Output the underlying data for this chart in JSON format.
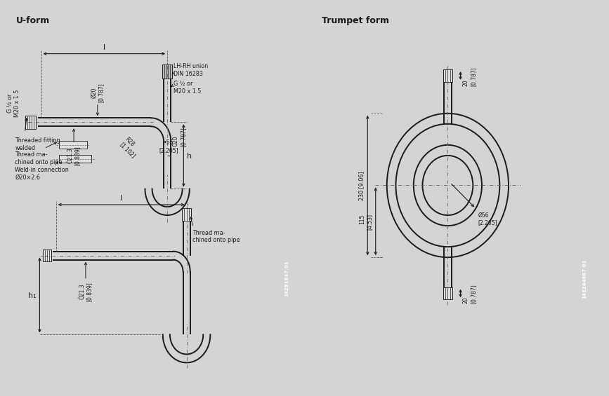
{
  "bg_color": "#d4d4d4",
  "panel_left_bg": "#d4d4d4",
  "panel_right_bg": "#d4d4d4",
  "line_color": "#1a1a1a",
  "title_left": "U-form",
  "title_right": "Trumpet form",
  "label_g_left": "G ½ or\nM20 x 1.5",
  "label_lhrh": "LH-RH union\nDIN 16283",
  "label_g_right": "G ½ or\nM20 x 1.5",
  "label_threaded": "Threaded fitting\nwelded",
  "label_thread1": "Thread ma-\nchined onto pipe",
  "label_weld": "Weld-in connection\nØ20×2.6",
  "label_thread2": "Thread ma-\nchined onto pipe",
  "dim_d20_1": "Ø20\n[0.787]",
  "dim_d213": "Ò21.3\n[0.839]",
  "dim_r28": "R28\n[1.102]",
  "dim_56": "•56\n[2.205]",
  "dim_d20_2": "Ò20\n[0.787]",
  "dim_l": "l",
  "dim_h": "h",
  "dim_l2": "l",
  "dim_h1": "h₁",
  "dim_d213_2": "Ò21.3\n[0.839]",
  "trump_20_top": "20\n[0.787]",
  "trump_230": "230 [9.06]",
  "trump_115": "115\n[4.53]",
  "trump_20_bot": "20\n[0.787]",
  "trump_d56": "Ø56\n[2.205]",
  "id_left": "14291847.01",
  "id_right": "143244687.01"
}
